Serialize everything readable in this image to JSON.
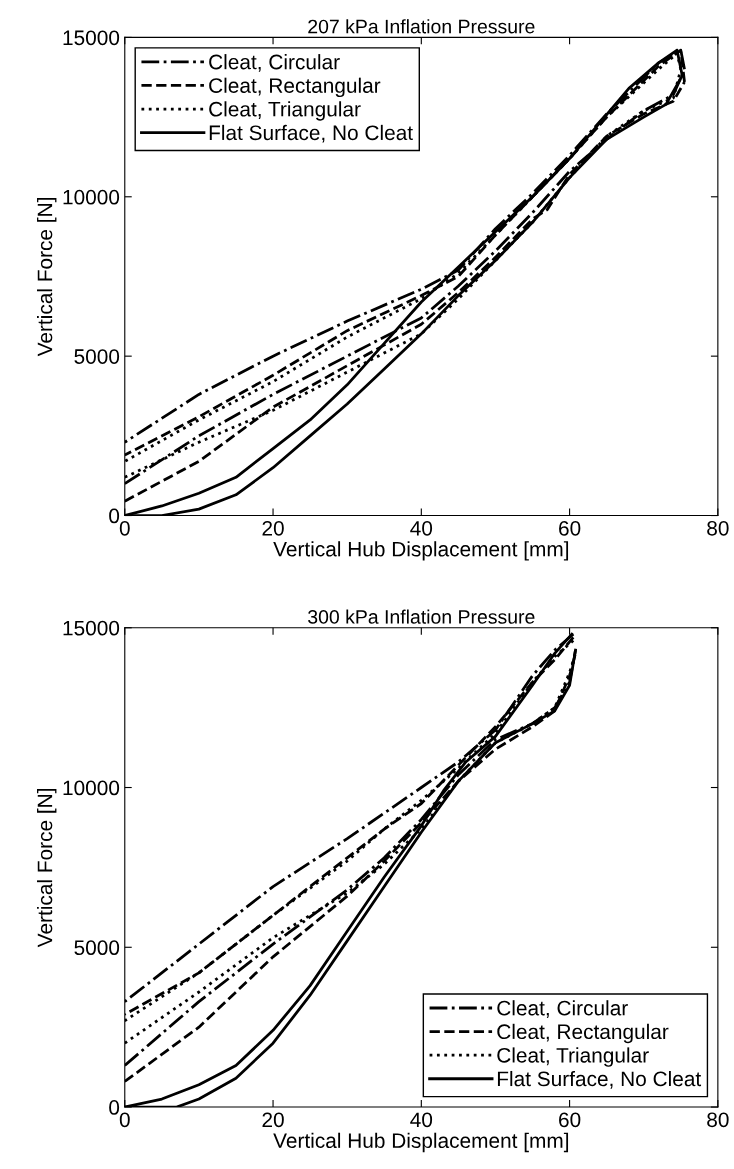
{
  "chart_data": [
    {
      "type": "line",
      "title": "207 kPa Inflation Pressure",
      "xlabel": "Vertical Hub Displacement [mm]",
      "ylabel": "Vertical Force [N]",
      "xlim": [
        0,
        80
      ],
      "ylim": [
        0,
        15000
      ],
      "xticks": [
        0,
        20,
        40,
        60,
        80
      ],
      "yticks": [
        0,
        5000,
        10000,
        15000
      ],
      "grid": false,
      "legend": "top left",
      "series": [
        {
          "name": "Cleat, Circular",
          "color": "#000000",
          "line_style": "dashdot",
          "x": [
            0,
            10,
            20,
            30,
            40,
            45,
            50,
            55,
            60,
            65,
            70,
            74,
            75.5
          ],
          "values": [
            1000,
            2500,
            3800,
            5000,
            6200,
            7200,
            8300,
            9500,
            10800,
            11800,
            12700,
            13200,
            14000
          ]
        },
        {
          "color": "#000000",
          "line_style": "dashdot",
          "x": [
            75.5,
            75,
            72,
            65,
            60,
            55,
            50,
            45,
            40,
            30,
            20,
            10,
            0
          ],
          "values": [
            14000,
            14600,
            14200,
            12600,
            11300,
            10100,
            9000,
            7700,
            7100,
            6100,
            5000,
            3800,
            2300
          ]
        },
        {
          "name": "Cleat, Rectangular",
          "color": "#000000",
          "line_style": "dashed",
          "x": [
            0,
            10,
            20,
            30,
            40,
            45,
            50,
            55,
            57,
            60,
            65,
            70,
            74,
            75.5
          ],
          "values": [
            450,
            1700,
            3400,
            4700,
            6000,
            7000,
            8100,
            9300,
            9600,
            10700,
            11900,
            12600,
            13000,
            13600
          ]
        },
        {
          "color": "#000000",
          "line_style": "dashed",
          "x": [
            75.5,
            75,
            72,
            65,
            60,
            55,
            50,
            45,
            40,
            30,
            20,
            10,
            0
          ],
          "values": [
            13600,
            14600,
            14100,
            12500,
            11200,
            10000,
            8800,
            7500,
            6900,
            5800,
            4400,
            3100,
            1900
          ]
        },
        {
          "name": "Cleat, Triangular",
          "color": "#000000",
          "line_style": "dotted",
          "x": [
            0,
            10,
            20,
            30,
            40,
            45,
            50,
            55,
            60,
            65,
            70,
            74,
            75
          ],
          "values": [
            1200,
            2300,
            3300,
            4500,
            5700,
            6800,
            8000,
            9200,
            10600,
            11900,
            12700,
            13100,
            14000
          ]
        },
        {
          "color": "#000000",
          "line_style": "dotted",
          "x": [
            75,
            74.5,
            72,
            65,
            60,
            55,
            50,
            45,
            40,
            30,
            20,
            10,
            0
          ],
          "values": [
            14000,
            14500,
            14000,
            12500,
            11200,
            10000,
            8800,
            7600,
            6800,
            5600,
            4200,
            3000,
            1700
          ]
        },
        {
          "name": "Flat Surface, No Cleat",
          "color": "#000000",
          "line_style": "solid",
          "x": [
            0,
            5,
            10,
            15,
            20,
            25,
            30,
            35,
            40,
            45,
            50,
            55,
            60,
            65,
            70,
            73,
            75.2
          ],
          "values": [
            0,
            0,
            200,
            650,
            1500,
            2500,
            3500,
            4600,
            5700,
            6900,
            8000,
            9200,
            10600,
            11800,
            12500,
            12900,
            13800
          ]
        },
        {
          "color": "#000000",
          "line_style": "solid",
          "x": [
            75.2,
            74.5,
            72,
            68,
            64,
            60,
            55,
            50,
            45,
            40,
            35,
            30,
            25,
            20,
            15,
            10,
            5,
            0
          ],
          "values": [
            13800,
            14600,
            14200,
            13400,
            12300,
            11200,
            10000,
            8900,
            7800,
            6700,
            5400,
            4100,
            3000,
            2100,
            1200,
            700,
            300,
            0
          ]
        }
      ]
    },
    {
      "type": "line",
      "title": "300 kPa Inflation Pressure",
      "xlabel": "Vertical Hub Displacement [mm]",
      "ylabel": "Vertical Force [N]",
      "xlim": [
        0,
        80
      ],
      "ylim": [
        0,
        15000
      ],
      "xticks": [
        0,
        20,
        40,
        60,
        80
      ],
      "yticks": [
        0,
        5000,
        10000,
        15000
      ],
      "grid": false,
      "legend": "bottom right",
      "series": [
        {
          "name": "Cleat, Circular",
          "color": "#000000",
          "line_style": "dashdot",
          "x": [
            0,
            10,
            20,
            30,
            35,
            40,
            45,
            50,
            55,
            58,
            60,
            60.8
          ],
          "values": [
            1300,
            3300,
            5100,
            6800,
            7800,
            9000,
            10400,
            11500,
            12000,
            12500,
            13300,
            14300
          ]
        },
        {
          "color": "#000000",
          "line_style": "dashdot",
          "x": [
            60.5,
            58,
            55,
            50,
            45,
            40,
            35,
            30,
            20,
            10,
            0
          ],
          "values": [
            14800,
            14300,
            13500,
            11800,
            10800,
            10000,
            9200,
            8400,
            6900,
            5100,
            3300
          ]
        },
        {
          "name": "Cleat, Rectangular",
          "color": "#000000",
          "line_style": "dashed",
          "x": [
            0,
            10,
            20,
            30,
            35,
            40,
            45,
            50,
            55,
            58,
            60,
            60.8
          ],
          "values": [
            800,
            2500,
            4700,
            6600,
            7700,
            8900,
            10200,
            11200,
            11900,
            12400,
            13500,
            14200
          ]
        },
        {
          "color": "#000000",
          "line_style": "dashed",
          "x": [
            60.5,
            58,
            55,
            50,
            45,
            40,
            35,
            30,
            20,
            10,
            0
          ],
          "values": [
            14700,
            14000,
            13300,
            11900,
            10700,
            9500,
            8700,
            7800,
            6000,
            4200,
            2900
          ]
        },
        {
          "name": "Cleat, Triangular",
          "color": "#000000",
          "line_style": "dotted",
          "x": [
            0,
            10,
            20,
            30,
            35,
            40,
            45,
            50,
            55,
            58,
            60,
            60.8
          ],
          "values": [
            2000,
            3600,
            5300,
            6700,
            7600,
            8700,
            10200,
            11400,
            12000,
            12500,
            13600,
            14200
          ]
        },
        {
          "color": "#000000",
          "line_style": "dotted",
          "x": [
            60.5,
            58,
            55,
            50,
            45,
            40,
            35,
            30,
            20,
            10,
            0
          ],
          "values": [
            14600,
            14100,
            13300,
            11700,
            10600,
            9600,
            8700,
            7700,
            6000,
            4200,
            2700
          ]
        },
        {
          "name": "Flat Surface, No Cleat",
          "color": "#000000",
          "line_style": "solid",
          "x": [
            0,
            7,
            10,
            15,
            20,
            25,
            30,
            35,
            40,
            45,
            50,
            55,
            58,
            60,
            60.8
          ],
          "values": [
            0,
            0,
            250,
            900,
            2000,
            3500,
            5200,
            6900,
            8600,
            10200,
            11400,
            12000,
            12400,
            13200,
            14300
          ]
        },
        {
          "color": "#000000",
          "line_style": "solid",
          "x": [
            60.3,
            58,
            55,
            50,
            46,
            43,
            40,
            35,
            30,
            25,
            20,
            15,
            10,
            5,
            0
          ],
          "values": [
            14800,
            14200,
            13200,
            11600,
            10800,
            9900,
            8800,
            7200,
            5500,
            3800,
            2400,
            1300,
            700,
            250,
            0
          ]
        }
      ]
    }
  ]
}
